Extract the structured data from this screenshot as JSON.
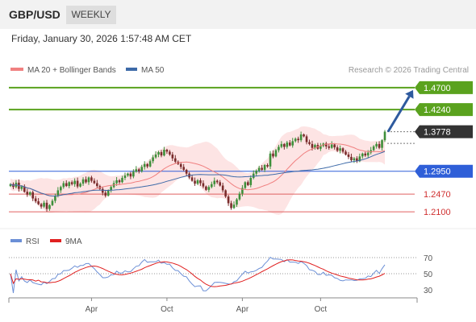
{
  "header": {
    "symbol": "GBP/USD",
    "period": "WEEKLY",
    "datetime": "Friday, January 30, 2026 1:57:48 AM CET"
  },
  "source": "Research © 2026 Trading Central",
  "colors": {
    "candle_up": "#3d8f3a",
    "candle_down": "#7a2c2c",
    "ma20": "#f08080",
    "bollinger_fill": "#fde4e4",
    "ma50": "#3d6aa8",
    "resistance": "#5aa21e",
    "pivot": "#2f5fd8",
    "support": "#e06060",
    "forecast_arrow": "#2e5a9e",
    "price_tag": "#333333",
    "rsi": "#6b8fd6",
    "rsi_ma": "#e02020"
  },
  "chart_data": [
    {
      "type": "candlestick",
      "title": "GBP/USD",
      "legend": [
        {
          "name": "MA 20 + Bollinger Bands",
          "color": "#f08080"
        },
        {
          "name": "MA 50",
          "color": "#3d6aa8"
        }
      ],
      "legend_placement": "top-left",
      "x_ticks": [
        "Apr",
        "Oct",
        "Apr",
        "Oct"
      ],
      "ylim": [
        1.19,
        1.485
      ],
      "current_price": 1.3778,
      "levels": [
        {
          "value": 1.47,
          "label": "1.4700",
          "kind": "resistance"
        },
        {
          "value": 1.424,
          "label": "1.4240",
          "kind": "resistance"
        },
        {
          "value": 1.295,
          "label": "1.2950",
          "kind": "pivot"
        },
        {
          "value": 1.247,
          "label": "1.2470",
          "kind": "support"
        },
        {
          "value": 1.21,
          "label": "1.2100",
          "kind": "support"
        }
      ],
      "forecast_target": 1.47,
      "closes": [
        1.268,
        1.262,
        1.271,
        1.258,
        1.263,
        1.252,
        1.246,
        1.251,
        1.238,
        1.232,
        1.226,
        1.221,
        1.229,
        1.216,
        1.224,
        1.233,
        1.243,
        1.255,
        1.262,
        1.27,
        1.264,
        1.272,
        1.268,
        1.275,
        1.263,
        1.269,
        1.278,
        1.272,
        1.282,
        1.275,
        1.27,
        1.264,
        1.258,
        1.25,
        1.244,
        1.255,
        1.262,
        1.27,
        1.276,
        1.272,
        1.281,
        1.286,
        1.29,
        1.284,
        1.294,
        1.299,
        1.295,
        1.304,
        1.31,
        1.305,
        1.316,
        1.324,
        1.33,
        1.335,
        1.328,
        1.34,
        1.336,
        1.33,
        1.322,
        1.315,
        1.31,
        1.304,
        1.298,
        1.29,
        1.282,
        1.275,
        1.269,
        1.276,
        1.27,
        1.263,
        1.256,
        1.262,
        1.268,
        1.275,
        1.272,
        1.265,
        1.255,
        1.242,
        1.228,
        1.218,
        1.225,
        1.236,
        1.248,
        1.26,
        1.272,
        1.266,
        1.281,
        1.29,
        1.296,
        1.302,
        1.298,
        1.308,
        1.305,
        1.332,
        1.326,
        1.339,
        1.346,
        1.352,
        1.346,
        1.355,
        1.349,
        1.358,
        1.363,
        1.36,
        1.372,
        1.368,
        1.356,
        1.352,
        1.344,
        1.35,
        1.342,
        1.348,
        1.353,
        1.347,
        1.344,
        1.351,
        1.345,
        1.338,
        1.343,
        1.336,
        1.33,
        1.325,
        1.318,
        1.322,
        1.316,
        1.326,
        1.332,
        1.328,
        1.334,
        1.339,
        1.347,
        1.352,
        1.344,
        1.36,
        1.3778
      ]
    },
    {
      "type": "line",
      "title": "RSI",
      "legend": [
        {
          "name": "RSI",
          "color": "#6b8fd6"
        },
        {
          "name": "9MA",
          "color": "#e02020"
        }
      ],
      "legend_placement": "top-left",
      "ylim": [
        25,
        75
      ],
      "y_ticks": [
        70,
        50,
        30
      ],
      "x_ticks": [
        "Apr",
        "Oct",
        "Apr",
        "Oct"
      ]
    }
  ]
}
